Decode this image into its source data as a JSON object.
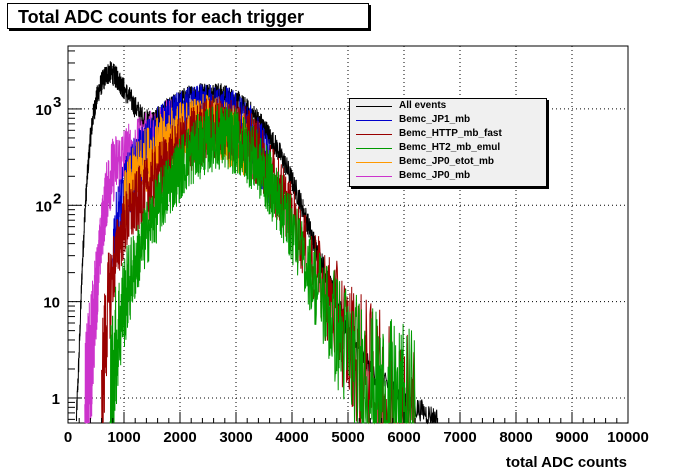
{
  "title": "Total ADC counts for each trigger",
  "chart_data": {
    "type": "line",
    "title": "Total ADC counts for each trigger",
    "xlabel": "total ADC counts",
    "ylabel": "",
    "xlim": [
      0,
      10000
    ],
    "ylim": [
      0.55,
      4500
    ],
    "y_scale": "log",
    "grid": true,
    "legend_position": "top-right",
    "x_ticks": [
      0,
      1000,
      2000,
      3000,
      4000,
      5000,
      6000,
      7000,
      8000,
      9000,
      10000
    ],
    "x_tick_labels": [
      "0",
      "1000",
      "2000",
      "3000",
      "4000",
      "5000",
      "6000",
      "7000",
      "8000",
      "9000",
      "10000"
    ],
    "y_ticks": [
      1,
      10,
      100,
      1000
    ],
    "y_tick_labels": [
      "1",
      "10",
      "10²",
      "10³"
    ],
    "series": [
      {
        "name": "All events",
        "color": "#000000",
        "x": [
          150,
          200,
          250,
          300,
          350,
          400,
          450,
          500,
          550,
          600,
          650,
          700,
          750,
          800,
          850,
          900,
          950,
          1000,
          1100,
          1200,
          1300,
          1400,
          1500,
          1600,
          1700,
          1800,
          1900,
          2000,
          2100,
          2200,
          2300,
          2400,
          2500,
          2600,
          2700,
          2800,
          2900,
          3000,
          3100,
          3200,
          3300,
          3400,
          3500,
          3600,
          3700,
          3800,
          3900,
          4000,
          4100,
          4200,
          4300,
          4400,
          4500,
          4600,
          4700,
          4800,
          4900,
          5000,
          5200,
          5400,
          5600,
          5800,
          6000,
          6200,
          6400,
          6600
        ],
        "values": [
          0.6,
          3,
          20,
          80,
          220,
          500,
          850,
          1200,
          1550,
          1850,
          2100,
          2300,
          2400,
          2300,
          2150,
          2000,
          1800,
          1600,
          1300,
          1050,
          850,
          760,
          760,
          800,
          900,
          1000,
          1100,
          1200,
          1300,
          1380,
          1430,
          1460,
          1470,
          1460,
          1430,
          1380,
          1300,
          1200,
          1100,
          980,
          880,
          760,
          640,
          520,
          420,
          330,
          250,
          180,
          130,
          90,
          60,
          40,
          28,
          20,
          14,
          10,
          7,
          5,
          3,
          2,
          1.5,
          1.2,
          1,
          0.8,
          0.7,
          0.6
        ]
      },
      {
        "name": "Bemc_JP1_mb",
        "color": "#0000cc",
        "x": [
          800,
          900,
          1000,
          1100,
          1200,
          1300,
          1400,
          1500,
          1600,
          1700,
          1800,
          1900,
          2000,
          2100,
          2200,
          2300,
          2400,
          2500,
          2600,
          2700,
          2800,
          2900,
          3000,
          3100,
          3200,
          3300,
          3400,
          3500,
          3600
        ],
        "values": [
          40,
          80,
          130,
          180,
          240,
          300,
          360,
          420,
          480,
          540,
          600,
          650,
          700,
          740,
          780,
          800,
          820,
          830,
          830,
          820,
          800,
          760,
          700,
          620,
          540,
          460,
          380,
          300,
          220
        ]
      },
      {
        "name": "Bemc_HTTP_mb_fast",
        "color": "#990000",
        "x": [
          600,
          700,
          800,
          900,
          1000,
          1100,
          1200,
          1300,
          1400,
          1500,
          1600,
          1700,
          1800,
          1900,
          2000,
          2100,
          2200,
          2300,
          2400,
          2500,
          2600,
          2700,
          2800,
          2900,
          3000,
          3100,
          3200,
          3300,
          3400,
          3500,
          3600,
          3700,
          3800,
          3900,
          4000,
          4200,
          4400,
          4600,
          4800,
          5000,
          5200,
          5400,
          5600,
          5800,
          6000,
          6200
        ],
        "values": [
          0.8,
          8,
          20,
          40,
          60,
          80,
          100,
          120,
          140,
          170,
          200,
          240,
          280,
          320,
          370,
          420,
          470,
          520,
          570,
          610,
          640,
          650,
          640,
          610,
          570,
          520,
          460,
          400,
          340,
          280,
          220,
          170,
          130,
          100,
          75,
          40,
          22,
          12,
          7,
          4,
          2.5,
          1.6,
          1.1,
          0.8,
          0.7,
          0.6
        ]
      },
      {
        "name": "Bemc_HT2_mb_emul",
        "color": "#009900",
        "x": [
          750,
          800,
          900,
          1000,
          1100,
          1200,
          1300,
          1400,
          1500,
          1600,
          1700,
          1800,
          1900,
          2000,
          2100,
          2200,
          2300,
          2400,
          2500,
          2600,
          2700,
          2800,
          2900,
          3000,
          3100,
          3200,
          3300,
          3400,
          3500,
          3600,
          3700,
          3800,
          3900,
          4000,
          4200,
          4400,
          4600,
          4800,
          5000,
          5200,
          5400,
          5600,
          5800,
          6000,
          6200
        ],
        "values": [
          0.6,
          2,
          5,
          10,
          16,
          24,
          35,
          50,
          70,
          95,
          125,
          160,
          200,
          240,
          290,
          340,
          390,
          430,
          470,
          500,
          510,
          500,
          480,
          450,
          410,
          360,
          310,
          260,
          210,
          170,
          130,
          100,
          75,
          55,
          30,
          16,
          9,
          5,
          3,
          2,
          1.4,
          1,
          0.8,
          0.7,
          0.6
        ]
      },
      {
        "name": "Bemc_JP0_etot_mb",
        "color": "#ff9900",
        "x": [
          1000,
          1100,
          1200,
          1300,
          1400,
          1500,
          1600,
          1700,
          1800,
          1900,
          2000,
          2100,
          2200,
          2300,
          2400,
          2500,
          2600,
          2700,
          2800,
          2900,
          3000,
          3100,
          3200
        ],
        "values": [
          100,
          150,
          200,
          250,
          300,
          340,
          380,
          420,
          460,
          500,
          540,
          580,
          610,
          630,
          640,
          640,
          630,
          610,
          580,
          540,
          490,
          430,
          370
        ]
      },
      {
        "name": "Bemc_JP0_mb",
        "color": "#cc33cc",
        "x": [
          300,
          350,
          400,
          450,
          500,
          550,
          600,
          650,
          700,
          750,
          800,
          900,
          1000,
          1100,
          1200,
          1300,
          1400,
          1500,
          1600,
          1700,
          1800,
          1900
        ],
        "values": [
          0.6,
          1,
          2,
          5,
          12,
          25,
          50,
          90,
          140,
          190,
          230,
          280,
          310,
          330,
          350,
          380,
          420,
          470,
          520,
          560,
          580,
          590
        ]
      }
    ]
  }
}
